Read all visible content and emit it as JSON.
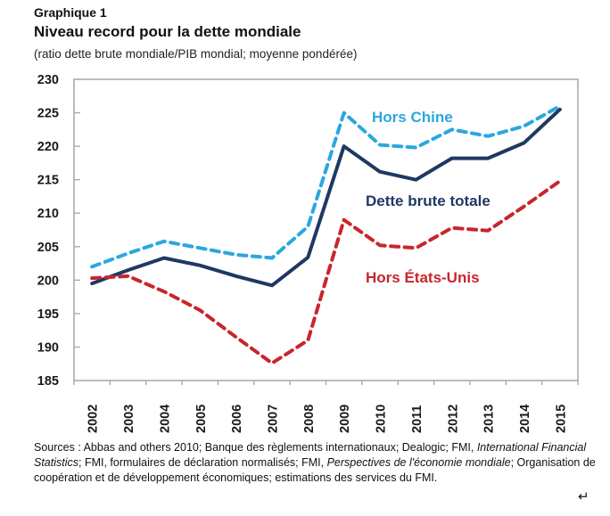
{
  "header": {
    "kicker": "Graphique 1",
    "title": "Niveau record pour la dette mondiale",
    "subtitle": "(ratio dette brute mondiale/PIB mondial; moyenne pondérée)"
  },
  "chart_data": {
    "type": "line",
    "title": "Niveau record pour la dette mondiale",
    "subtitle": "(ratio dette brute mondiale/PIB mondial; moyenne pondérée)",
    "categories": [
      "2002",
      "2003",
      "2004",
      "2005",
      "2006",
      "2007",
      "2008",
      "2009",
      "2010",
      "2011",
      "2012",
      "2013",
      "2014",
      "2015"
    ],
    "series": [
      {
        "name": "Hors Chine",
        "color": "#2BA7DF",
        "dashed": true,
        "values": [
          202,
          204,
          205.8,
          204.8,
          203.8,
          203.3,
          208,
          225,
          220.2,
          219.8,
          222.5,
          221.5,
          223,
          226
        ]
      },
      {
        "name": "Dette brute totale",
        "color": "#1F3864",
        "dashed": false,
        "values": [
          199.5,
          201.5,
          203.3,
          202.2,
          200.6,
          199.2,
          203.4,
          220,
          216.2,
          215,
          218.2,
          218.2,
          220.5,
          225.5
        ]
      },
      {
        "name": "Hors États-Unis",
        "color": "#C9252C",
        "dashed": true,
        "values": [
          200.3,
          200.6,
          198.3,
          195.5,
          191.5,
          187.6,
          191,
          209,
          205.2,
          204.8,
          207.8,
          207.4,
          211,
          214.8
        ]
      }
    ],
    "ylim": [
      185,
      230
    ],
    "ytick_step": 5,
    "xlabel": "",
    "ylabel": "",
    "grid": false,
    "legend_position": "inline-labels",
    "axis_color": "#ababab",
    "tick_label_color": "#1a1a1a"
  },
  "footer": {
    "sources_segments": [
      {
        "text": "Sources : Abbas and others 2010; Banque des règlements internationaux; Dealogic; FMI, ",
        "italic": false
      },
      {
        "text": "International Financial Statistics",
        "italic": true
      },
      {
        "text": "; FMI, formulaires de déclaration normalisés; FMI, ",
        "italic": false
      },
      {
        "text": "Perspectives de l'économie mondiale",
        "italic": true
      },
      {
        "text": "; Organisation de coopération et de développement économiques; estimations des services du FMI.",
        "italic": false
      }
    ],
    "return_mark": "↵"
  }
}
